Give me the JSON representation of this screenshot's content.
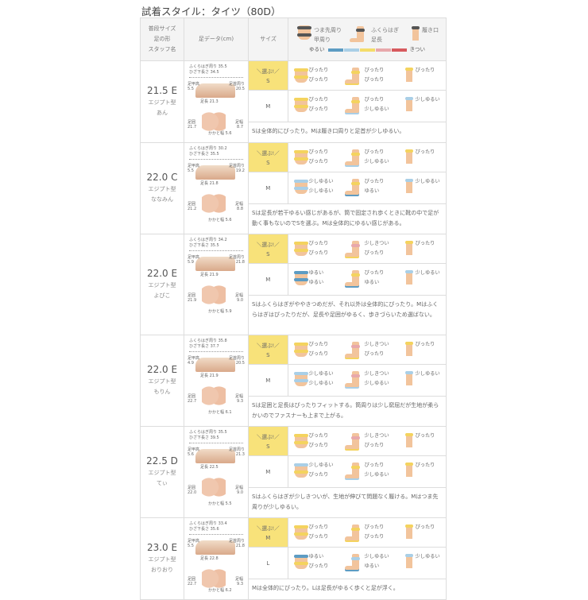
{
  "title": "試着スタイル：タイツ（80D）",
  "header": {
    "col1": [
      "普段サイズ",
      "足の形",
      "スタッフ名"
    ],
    "col2": "足データ(cm)",
    "col3": "サイズ",
    "legend": {
      "toe": "つま先周り",
      "instep": "甲周り",
      "calf": "ふくらはぎ",
      "length": "足長",
      "opening": "履き口",
      "loose": "ゆるい",
      "tight": "きつい"
    }
  },
  "labels": {
    "calf": "ふくらはぎ周り",
    "knee": "ひざ下長さ",
    "instep_h": "足甲高",
    "instep_g": "足首周り",
    "length": "足長",
    "girth": "足囲",
    "width": "足幅",
    "heel": "かかと幅",
    "select": "＼選ぶ!／"
  },
  "scale_colors": [
    "#5d9cc3",
    "#a9cfe7",
    "#f4dc6a",
    "#e8a8ab",
    "#d75a5e"
  ],
  "fit_colors": {
    "ぴったり": "#f4d35e",
    "少しゆるい": "#a9cfe7",
    "ゆるい": "#5d9cc3",
    "少しきつい": "#e8a8ab",
    "きつい": "#d75a5e"
  },
  "rows": [
    {
      "size": "21.5 E",
      "shape": "エジプト型",
      "name": "あん",
      "m": {
        "calf": "35.5",
        "knee": "34.5",
        "instep_h": "5.5",
        "instep_g": "20.5",
        "length": "21.3",
        "girth": "21.7",
        "width": "8.7",
        "heel": "5.6"
      },
      "fits": [
        {
          "size": "S",
          "sel": true,
          "toe": "ぴったり",
          "instep": "ぴったり",
          "calf": "ぴったり",
          "length": "ぴったり",
          "opening": "ぴったり"
        },
        {
          "size": "M",
          "sel": false,
          "toe": "ぴったり",
          "instep": "ぴったり",
          "calf": "ぴったり",
          "length": "少しゆるい",
          "opening": "少しゆるい"
        }
      ],
      "comment": "Sは全体的にぴったり。Mは履き口周りと足首が少しゆるい。"
    },
    {
      "size": "22.0 C",
      "shape": "エジプト型",
      "name": "ななみん",
      "m": {
        "calf": "30.2",
        "knee": "35.5",
        "instep_h": "5.5",
        "instep_g": "19.2",
        "length": "21.8",
        "girth": "21.2",
        "width": "8.8",
        "heel": "5.6"
      },
      "fits": [
        {
          "size": "S",
          "sel": true,
          "toe": "ぴったり",
          "instep": "ぴったり",
          "calf": "ぴったり",
          "length": "少しゆるい",
          "opening": "ぴったり"
        },
        {
          "size": "M",
          "sel": false,
          "toe": "少しゆるい",
          "instep": "少しゆるい",
          "calf": "ぴったり",
          "length": "ゆるい",
          "opening": "少しゆるい"
        }
      ],
      "comment": "Sは足長が若干ゆるい感じがあるが、筒で固定され歩くときに靴の中で足が動く事もないのでSを選ぶ。Mは全体的にゆるい感じがある。"
    },
    {
      "size": "22.0 E",
      "shape": "エジプト型",
      "name": "よぴこ",
      "m": {
        "calf": "34.2",
        "knee": "35.5",
        "instep_h": "5.9",
        "instep_g": "21.8",
        "length": "21.9",
        "girth": "21.9",
        "width": "9.0",
        "heel": "5.9"
      },
      "fits": [
        {
          "size": "S",
          "sel": true,
          "toe": "ぴったり",
          "instep": "ぴったり",
          "calf": "少しきつい",
          "length": "ぴったり",
          "opening": "ぴったり"
        },
        {
          "size": "M",
          "sel": false,
          "toe": "ゆるい",
          "instep": "ゆるい",
          "calf": "ぴったり",
          "length": "ゆるい",
          "opening": "少しゆるい"
        }
      ],
      "comment": "Sはふくらはぎがややきつめだが、それ以外は全体的にぴったり。Mはふくらはぎはぴったりだが、足長や足囲がゆるく、歩きづらいため選ばない。"
    },
    {
      "size": "22.0 E",
      "shape": "エジプト型",
      "name": "もりん",
      "m": {
        "calf": "35.8",
        "knee": "37.7",
        "instep_h": "4.9",
        "instep_g": "20.5",
        "length": "21.9",
        "girth": "22.7",
        "width": "9.3",
        "heel": "6.1"
      },
      "fits": [
        {
          "size": "S",
          "sel": true,
          "toe": "ぴったり",
          "instep": "ぴったり",
          "calf": "少しきつい",
          "length": "ぴったり",
          "opening": "ぴったり"
        },
        {
          "size": "M",
          "sel": false,
          "toe": "少しゆるい",
          "instep": "少しゆるい",
          "calf": "少しきつい",
          "length": "少しゆるい",
          "opening": "少しゆるい"
        }
      ],
      "comment": "Sは足囲と足長はぴったりフィットする。筒周りは少し窮屈だが生地が柔らかいのでファスナーも上まで上がる。"
    },
    {
      "size": "22.5 D",
      "shape": "エジプト型",
      "name": "てぃ",
      "m": {
        "calf": "35.5",
        "knee": "39.5",
        "instep_h": "5.6",
        "instep_g": "21.3",
        "length": "22.5",
        "girth": "22.0",
        "width": "9.0",
        "heel": "5.5"
      },
      "fits": [
        {
          "size": "S",
          "sel": true,
          "toe": "ぴったり",
          "instep": "ぴったり",
          "calf": "少しきつい",
          "length": "ぴったり",
          "opening": "ぴったり"
        },
        {
          "size": "M",
          "sel": false,
          "toe": "少しゆるい",
          "instep": "ぴったり",
          "calf": "ぴったり",
          "length": "少しゆるい",
          "opening": "ぴったり"
        }
      ],
      "comment": "Sはふくらはぎが少しきついが、生地が伸びて問題なく履ける。Mはつま先周りが少しゆるい。"
    },
    {
      "size": "23.0 E",
      "shape": "エジプト型",
      "name": "おりおり",
      "m": {
        "calf": "33.4",
        "knee": "35.6",
        "instep_h": "5.5",
        "instep_g": "21.8",
        "length": "22.8",
        "girth": "22.7",
        "width": "9.3",
        "heel": "6.2"
      },
      "fits": [
        {
          "size": "M",
          "sel": true,
          "toe": "ぴったり",
          "instep": "ぴったり",
          "calf": "ぴったり",
          "length": "ぴったり",
          "opening": "ぴったり"
        },
        {
          "size": "L",
          "sel": false,
          "toe": "ゆるい",
          "instep": "ぴったり",
          "calf": "少しゆるい",
          "length": "ゆるい",
          "opening": "少しゆるい"
        }
      ],
      "comment": "Mは全体的にぴったり。Lは足長がゆるく歩くと足が浮く。"
    }
  ]
}
